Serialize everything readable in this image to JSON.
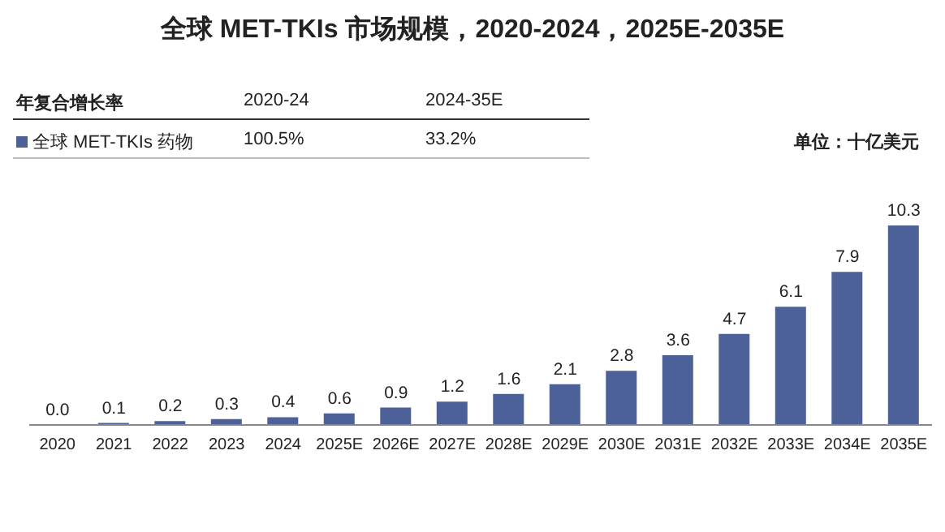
{
  "chart_data": {
    "type": "bar",
    "title": "全球 MET-TKIs 市场规模，2020-2024，2025E-2035E",
    "ylabel": "单位：十亿美元",
    "annotations": [
      "年复合增长率",
      "2020-24",
      "2024-35E",
      "全球 MET-TKIs 药物",
      "100.5%",
      "33.2%"
    ],
    "categories": [
      "2020",
      "2021",
      "2022",
      "2023",
      "2024",
      "2025E",
      "2026E",
      "2027E",
      "2028E",
      "2029E",
      "2030E",
      "2031E",
      "2032E",
      "2033E",
      "2034E",
      "2035E"
    ],
    "values": [
      0.0,
      0.1,
      0.2,
      0.3,
      0.4,
      0.6,
      0.9,
      1.2,
      1.6,
      2.1,
      2.8,
      3.6,
      4.7,
      6.1,
      7.9,
      10.3
    ],
    "value_labels": [
      "0.0",
      "0.1",
      "0.2",
      "0.3",
      "0.4",
      "0.6",
      "0.9",
      "1.2",
      "1.6",
      "2.1",
      "2.8",
      "3.6",
      "4.7",
      "6.1",
      "7.9",
      "10.3"
    ],
    "color": "#4d6199"
  }
}
